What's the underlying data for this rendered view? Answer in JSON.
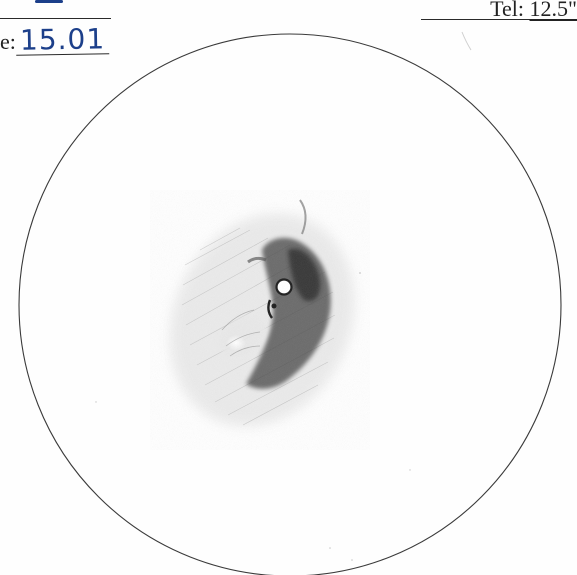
{
  "header": {
    "left_label_fragment": "e:",
    "left_value": "15.01",
    "right_label": "Tel:",
    "right_value": "12.5\""
  },
  "colors": {
    "ink": "#222222",
    "pen_blue": "#1c3f8a",
    "pencil_dark": "#3a3a3a",
    "paper": "#fefefe"
  },
  "sketch": {
    "subject": "pencil drawing inside circular field of view"
  }
}
